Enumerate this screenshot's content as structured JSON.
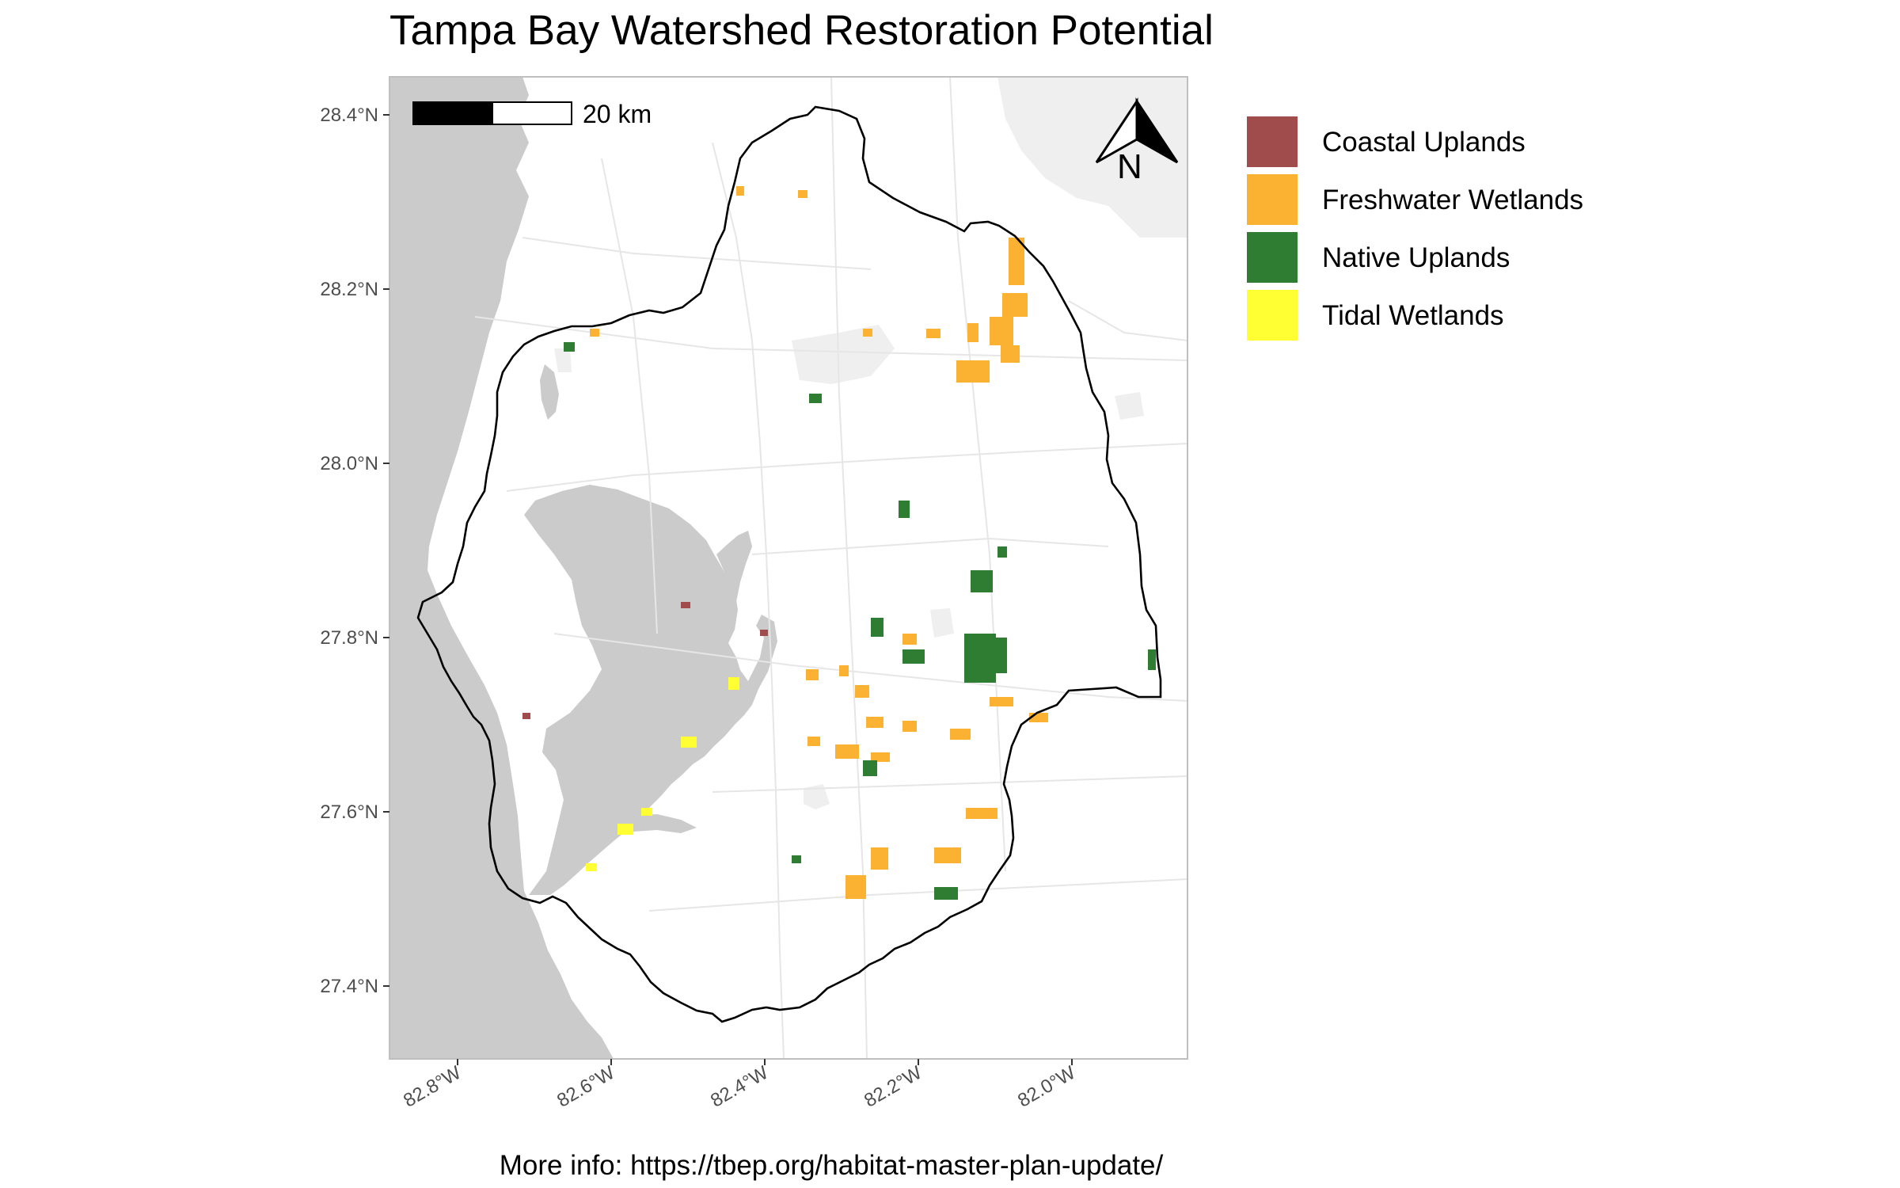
{
  "title": "Tampa Bay Watershed Restoration Potential",
  "footer": "More info: https://tbep.org/habitat-master-plan-update/",
  "map": {
    "lat_ticks": [
      {
        "value": 28.4,
        "label": "28.4°N"
      },
      {
        "value": 28.2,
        "label": "28.2°N"
      },
      {
        "value": 28.0,
        "label": "28.0°N"
      },
      {
        "value": 27.8,
        "label": "27.8°N"
      },
      {
        "value": 27.6,
        "label": "27.6°N"
      },
      {
        "value": 27.4,
        "label": "27.4°N"
      }
    ],
    "lon_ticks": [
      {
        "value": -82.8,
        "label": "82.8°W"
      },
      {
        "value": -82.6,
        "label": "82.6°W"
      },
      {
        "value": -82.4,
        "label": "82.4°W"
      },
      {
        "value": -82.2,
        "label": "82.2°W"
      },
      {
        "value": -82.0,
        "label": "82.0°W"
      }
    ],
    "scale_bar": {
      "label": "20 km"
    },
    "north_arrow": {
      "letter": "N"
    },
    "colors": {
      "water": "#cbcbcb",
      "land": "#ffffff",
      "roads": "#e6e6e6",
      "urban": "#efefef",
      "boundary": "#000000"
    }
  },
  "legend": {
    "placement": "right",
    "items": [
      {
        "label": "Coastal Uplands",
        "color": "#a04c4c"
      },
      {
        "label": "Freshwater Wetlands",
        "color": "#fbb233"
      },
      {
        "label": "Native Uplands",
        "color": "#2e7d32"
      },
      {
        "label": "Tidal Wetlands",
        "color": "#ffff33"
      }
    ]
  }
}
